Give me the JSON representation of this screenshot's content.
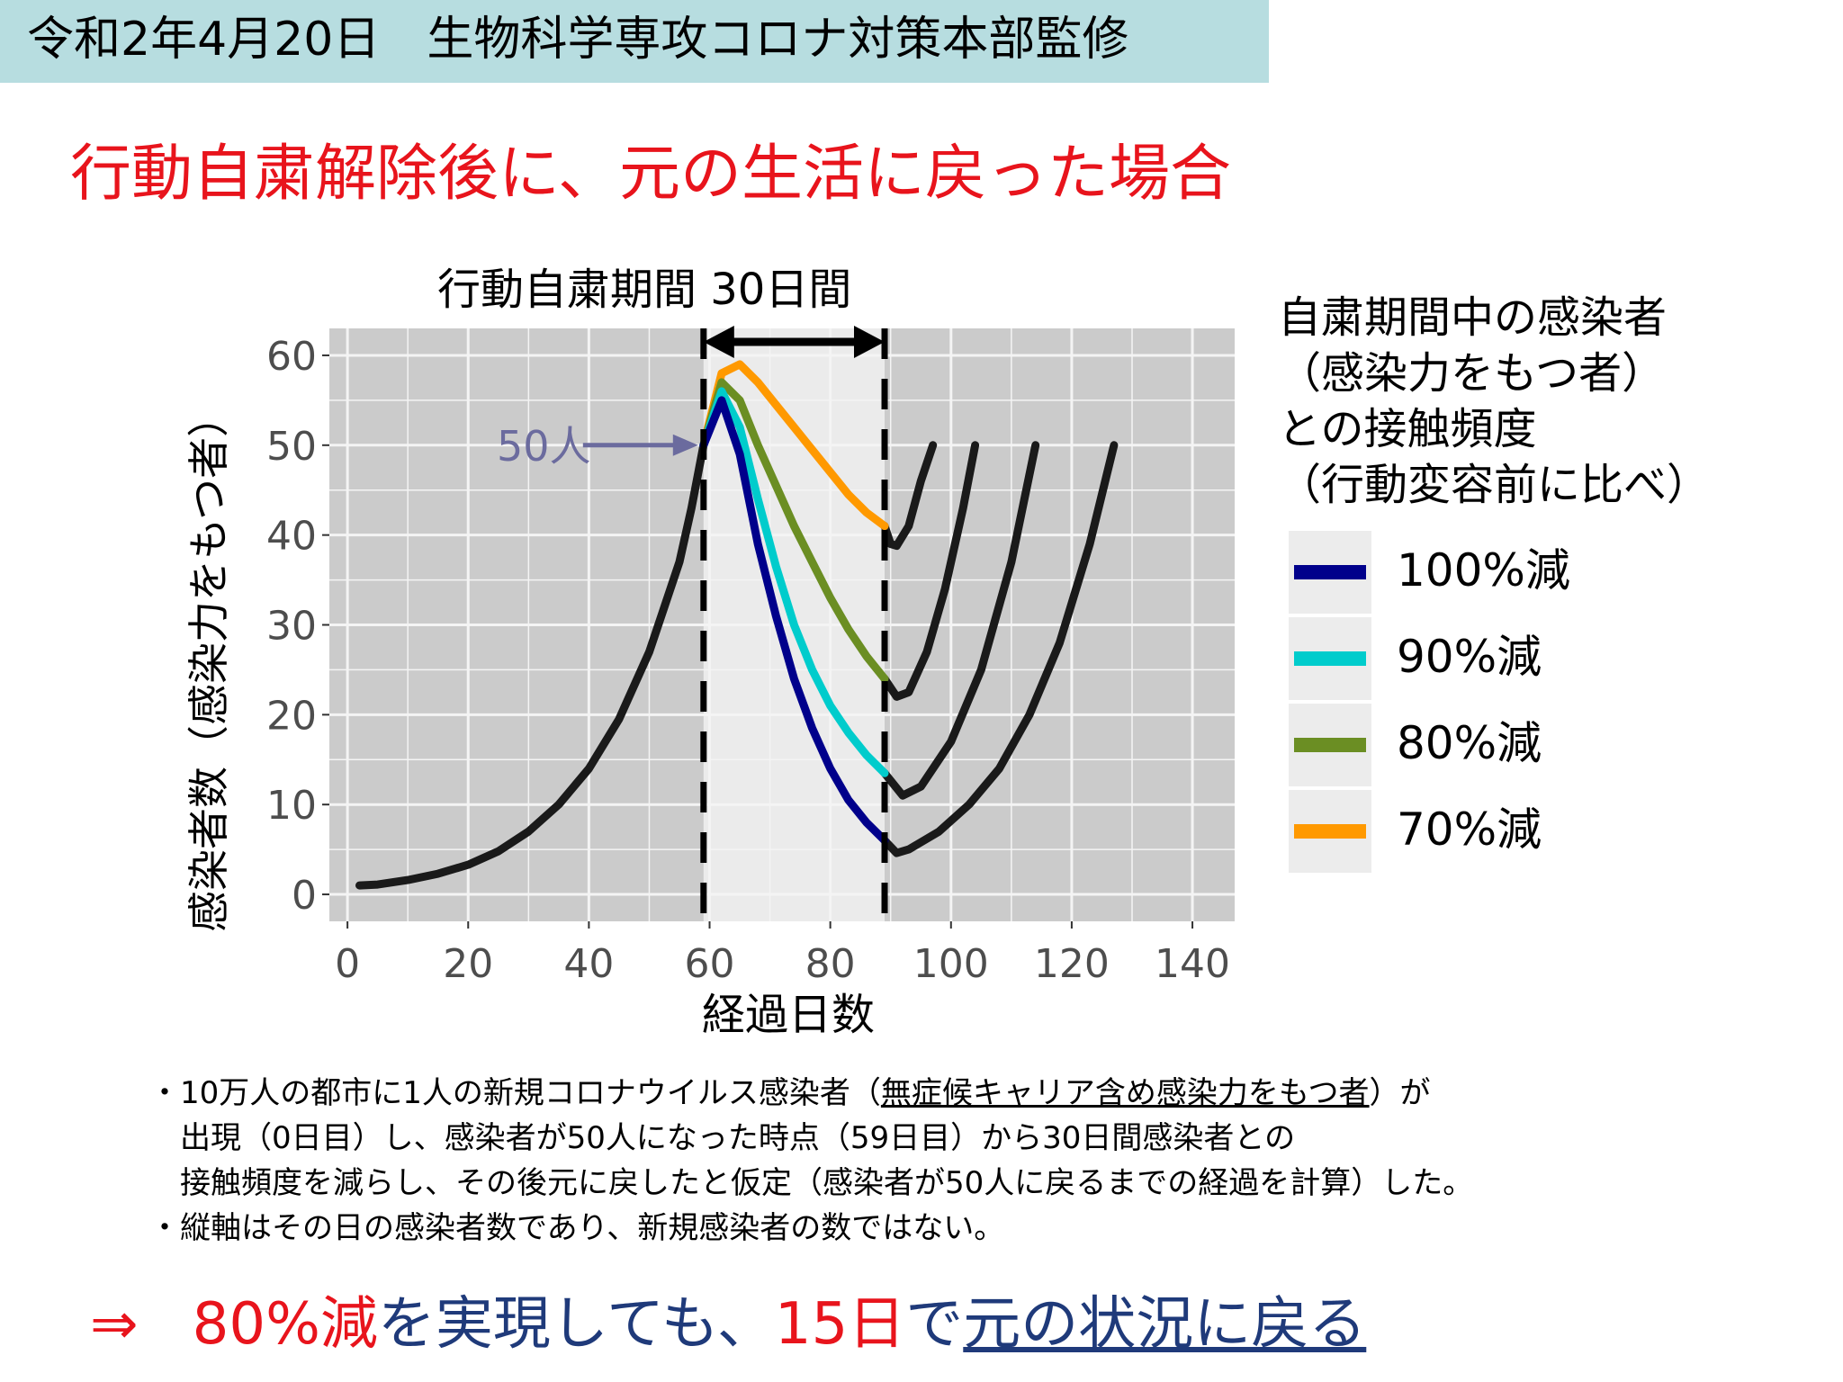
{
  "header": {
    "text": "令和2年4月20日　生物科学専攻コロナ対策本部監修"
  },
  "title": "行動自粛解除後に、元の生活に戻った場合",
  "chart_data": {
    "type": "line",
    "xlabel": "経過日数",
    "ylabel": "感染者数（感染力をもつ者）",
    "xlim": [
      -3,
      147
    ],
    "ylim": [
      -3,
      63
    ],
    "xticks": [
      0,
      20,
      40,
      60,
      80,
      100,
      120,
      140
    ],
    "yticks": [
      0,
      10,
      20,
      30,
      40,
      50,
      60
    ],
    "grid": true,
    "legend_position": "right",
    "legend_title": [
      "自粛期間中の感染者",
      "（感染力をもつ者）",
      "との接触頻度",
      "（行動変容前に比べ）"
    ],
    "period": {
      "label": "行動自粛期間 30日間",
      "start": 59,
      "end": 89
    },
    "annotation": {
      "text": "50人",
      "x": 59,
      "y": 50
    },
    "series": [
      {
        "name": "100%減",
        "color": "#00008b",
        "x": [
          59,
          62,
          65,
          68,
          71,
          74,
          77,
          80,
          83,
          86,
          89
        ],
        "y": [
          50,
          55,
          49,
          39,
          31,
          24,
          18.5,
          14,
          10.5,
          8,
          6
        ]
      },
      {
        "name": "90%減",
        "color": "#00cccc",
        "x": [
          59,
          62,
          65,
          68,
          71,
          74,
          77,
          80,
          83,
          86,
          89
        ],
        "y": [
          50,
          56,
          52,
          44,
          36.5,
          30,
          25,
          21,
          18,
          15.5,
          13.5
        ]
      },
      {
        "name": "80%減",
        "color": "#6b8e23",
        "x": [
          59,
          62,
          65,
          68,
          71,
          74,
          77,
          80,
          83,
          86,
          89
        ],
        "y": [
          50,
          57,
          55,
          50,
          45.5,
          41,
          37,
          33,
          29.5,
          26.5,
          24
        ]
      },
      {
        "name": "70%減",
        "color": "#ff9900",
        "x": [
          59,
          62,
          65,
          68,
          71,
          74,
          77,
          80,
          83,
          86,
          89
        ],
        "y": [
          50,
          58,
          59,
          57,
          54.5,
          52,
          49.5,
          47,
          44.5,
          42.5,
          41
        ]
      }
    ],
    "baseline_series": [
      {
        "x": [
          2,
          5,
          10,
          15,
          20,
          25,
          30,
          35,
          40,
          45,
          50,
          55,
          57,
          59
        ],
        "y": [
          1,
          1.1,
          1.6,
          2.3,
          3.3,
          4.8,
          7,
          10,
          14,
          19.5,
          27,
          37,
          43,
          50
        ]
      },
      {
        "x": [
          89,
          90,
          91,
          93,
          95,
          97
        ],
        "y": [
          41,
          39,
          38.8,
          41,
          46,
          50
        ]
      },
      {
        "x": [
          89,
          91,
          93,
          96,
          99,
          102,
          104
        ],
        "y": [
          24,
          22,
          22.5,
          27,
          34,
          43,
          50
        ]
      },
      {
        "x": [
          89,
          92,
          95,
          100,
          105,
          110,
          114
        ],
        "y": [
          13.5,
          11,
          12,
          17,
          25,
          37,
          50
        ]
      },
      {
        "x": [
          89,
          91,
          93,
          98,
          103,
          108,
          113,
          118,
          123,
          127
        ],
        "y": [
          6,
          4.6,
          5,
          7,
          10,
          14,
          20,
          28,
          39,
          50
        ]
      }
    ]
  },
  "notes": [
    "・10万人の都市に1人の新規コロナウイルス感染者（",
    "無症候キャリア含め感染力をもつ者",
    "）が",
    "出現（0日目）し、感染者が50人になった時点（59日目）から30日間感染者との",
    "接触頻度を減らし、その後元に戻したと仮定（感染者が50人に戻るまでの経過を計算）した。",
    "・縦軸はその日の感染者数であり、新規感染者の数ではない。"
  ],
  "conclusion": {
    "arrow": "⇒",
    "part1": "80%減",
    "part2": "を実現しても、",
    "part3": "15日",
    "part4": "で",
    "part5": "元の状況に戻る"
  },
  "colors": {
    "header_band": "#b7dde0",
    "title_red": "#e8141c",
    "navy": "#1f3a7a",
    "plot_bg": "#cbcbcb",
    "period_bg": "#ebebeb",
    "annotation": "#6b6b9e"
  }
}
